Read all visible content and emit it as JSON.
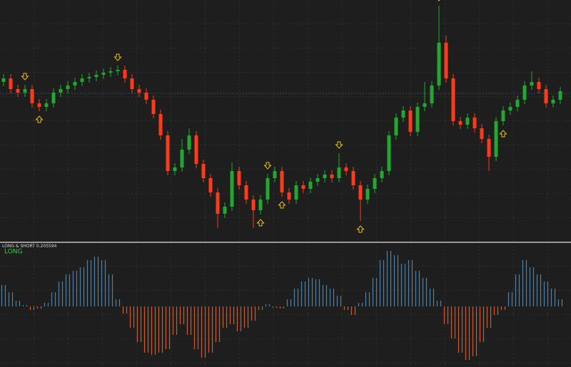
{
  "chart_data": [
    {
      "type": "candlestick",
      "open": [
        225,
        230,
        215,
        210,
        215,
        195,
        190,
        195,
        210,
        215,
        220,
        225,
        230,
        232,
        235,
        238,
        240,
        242,
        230,
        215,
        210,
        200,
        180,
        150,
        100,
        105,
        130,
        150,
        110,
        90,
        70,
        40,
        50,
        100,
        80,
        60,
        45,
        60,
        90,
        100,
        70,
        60,
        80,
        75,
        85,
        90,
        95,
        90,
        105,
        100,
        80,
        60,
        75,
        90,
        100,
        150,
        175,
        185,
        155,
        190,
        195,
        220,
        280,
        230,
        170,
        165,
        175,
        160,
        145,
        120,
        170,
        185,
        190,
        200,
        220,
        225,
        215,
        195,
        200
      ],
      "high": [
        236,
        236,
        221,
        221,
        221,
        201,
        201,
        216,
        221,
        226,
        231,
        236,
        238,
        241,
        244,
        246,
        248,
        248,
        236,
        221,
        216,
        206,
        186,
        156,
        111,
        145,
        160,
        156,
        116,
        96,
        76,
        56,
        112,
        106,
        86,
        66,
        66,
        96,
        106,
        106,
        76,
        86,
        86,
        91,
        96,
        101,
        101,
        125,
        111,
        106,
        86,
        81,
        96,
        106,
        156,
        181,
        191,
        191,
        196,
        225,
        226,
        332,
        290,
        236,
        176,
        181,
        181,
        166,
        151,
        176,
        191,
        196,
        206,
        226,
        240,
        231,
        221,
        206,
        218
      ],
      "low": [
        219,
        209,
        204,
        204,
        189,
        184,
        184,
        189,
        204,
        209,
        214,
        219,
        224,
        226,
        229,
        232,
        234,
        224,
        209,
        204,
        194,
        174,
        144,
        94,
        94,
        99,
        124,
        104,
        84,
        64,
        20,
        34,
        44,
        74,
        54,
        20,
        39,
        54,
        84,
        64,
        54,
        54,
        69,
        69,
        79,
        84,
        84,
        84,
        94,
        74,
        30,
        54,
        69,
        84,
        94,
        144,
        169,
        149,
        149,
        184,
        189,
        214,
        224,
        164,
        159,
        159,
        154,
        139,
        100,
        114,
        164,
        179,
        184,
        194,
        214,
        209,
        189,
        189,
        194
      ],
      "close": [
        230,
        215,
        210,
        215,
        195,
        190,
        195,
        210,
        215,
        220,
        225,
        230,
        232,
        235,
        238,
        240,
        242,
        230,
        215,
        210,
        200,
        180,
        150,
        100,
        105,
        130,
        150,
        110,
        90,
        70,
        40,
        50,
        100,
        80,
        60,
        45,
        60,
        90,
        100,
        70,
        60,
        80,
        75,
        85,
        90,
        95,
        90,
        105,
        100,
        80,
        60,
        75,
        90,
        100,
        150,
        175,
        185,
        155,
        190,
        195,
        220,
        280,
        230,
        170,
        165,
        175,
        160,
        145,
        120,
        170,
        185,
        190,
        200,
        220,
        225,
        215,
        195,
        200,
        212
      ],
      "up_color": "#22a830",
      "down_color": "#ff3a1a",
      "signals_down": [
        3,
        16,
        37,
        47,
        61
      ],
      "signals_up": [
        5,
        36,
        39,
        50,
        70
      ],
      "signal_color": "#e8c020",
      "ylim": [
        0,
        340
      ]
    },
    {
      "type": "histogram-oscillator",
      "title": "LONG & SHORT 0.205594",
      "state": "LONG",
      "state_color": "#2ed02e",
      "values": [
        30,
        20,
        8,
        2,
        -5,
        -3,
        5,
        20,
        35,
        45,
        50,
        55,
        65,
        70,
        65,
        45,
        10,
        -10,
        -30,
        -50,
        -65,
        -68,
        -65,
        -60,
        -40,
        -25,
        -40,
        -60,
        -72,
        -65,
        -50,
        -30,
        -25,
        -35,
        -30,
        -20,
        -5,
        3,
        -2,
        -3,
        10,
        25,
        35,
        40,
        38,
        30,
        25,
        15,
        -5,
        -12,
        5,
        20,
        40,
        65,
        78,
        72,
        60,
        65,
        50,
        40,
        25,
        8,
        -25,
        -45,
        -65,
        -75,
        -70,
        -50,
        -30,
        -12,
        -5,
        20,
        45,
        65,
        55,
        45,
        35,
        25,
        10
      ],
      "pos_color": "#4f7ea8",
      "neg_color": "#d0582c",
      "ylim": [
        -85,
        88
      ]
    }
  ]
}
